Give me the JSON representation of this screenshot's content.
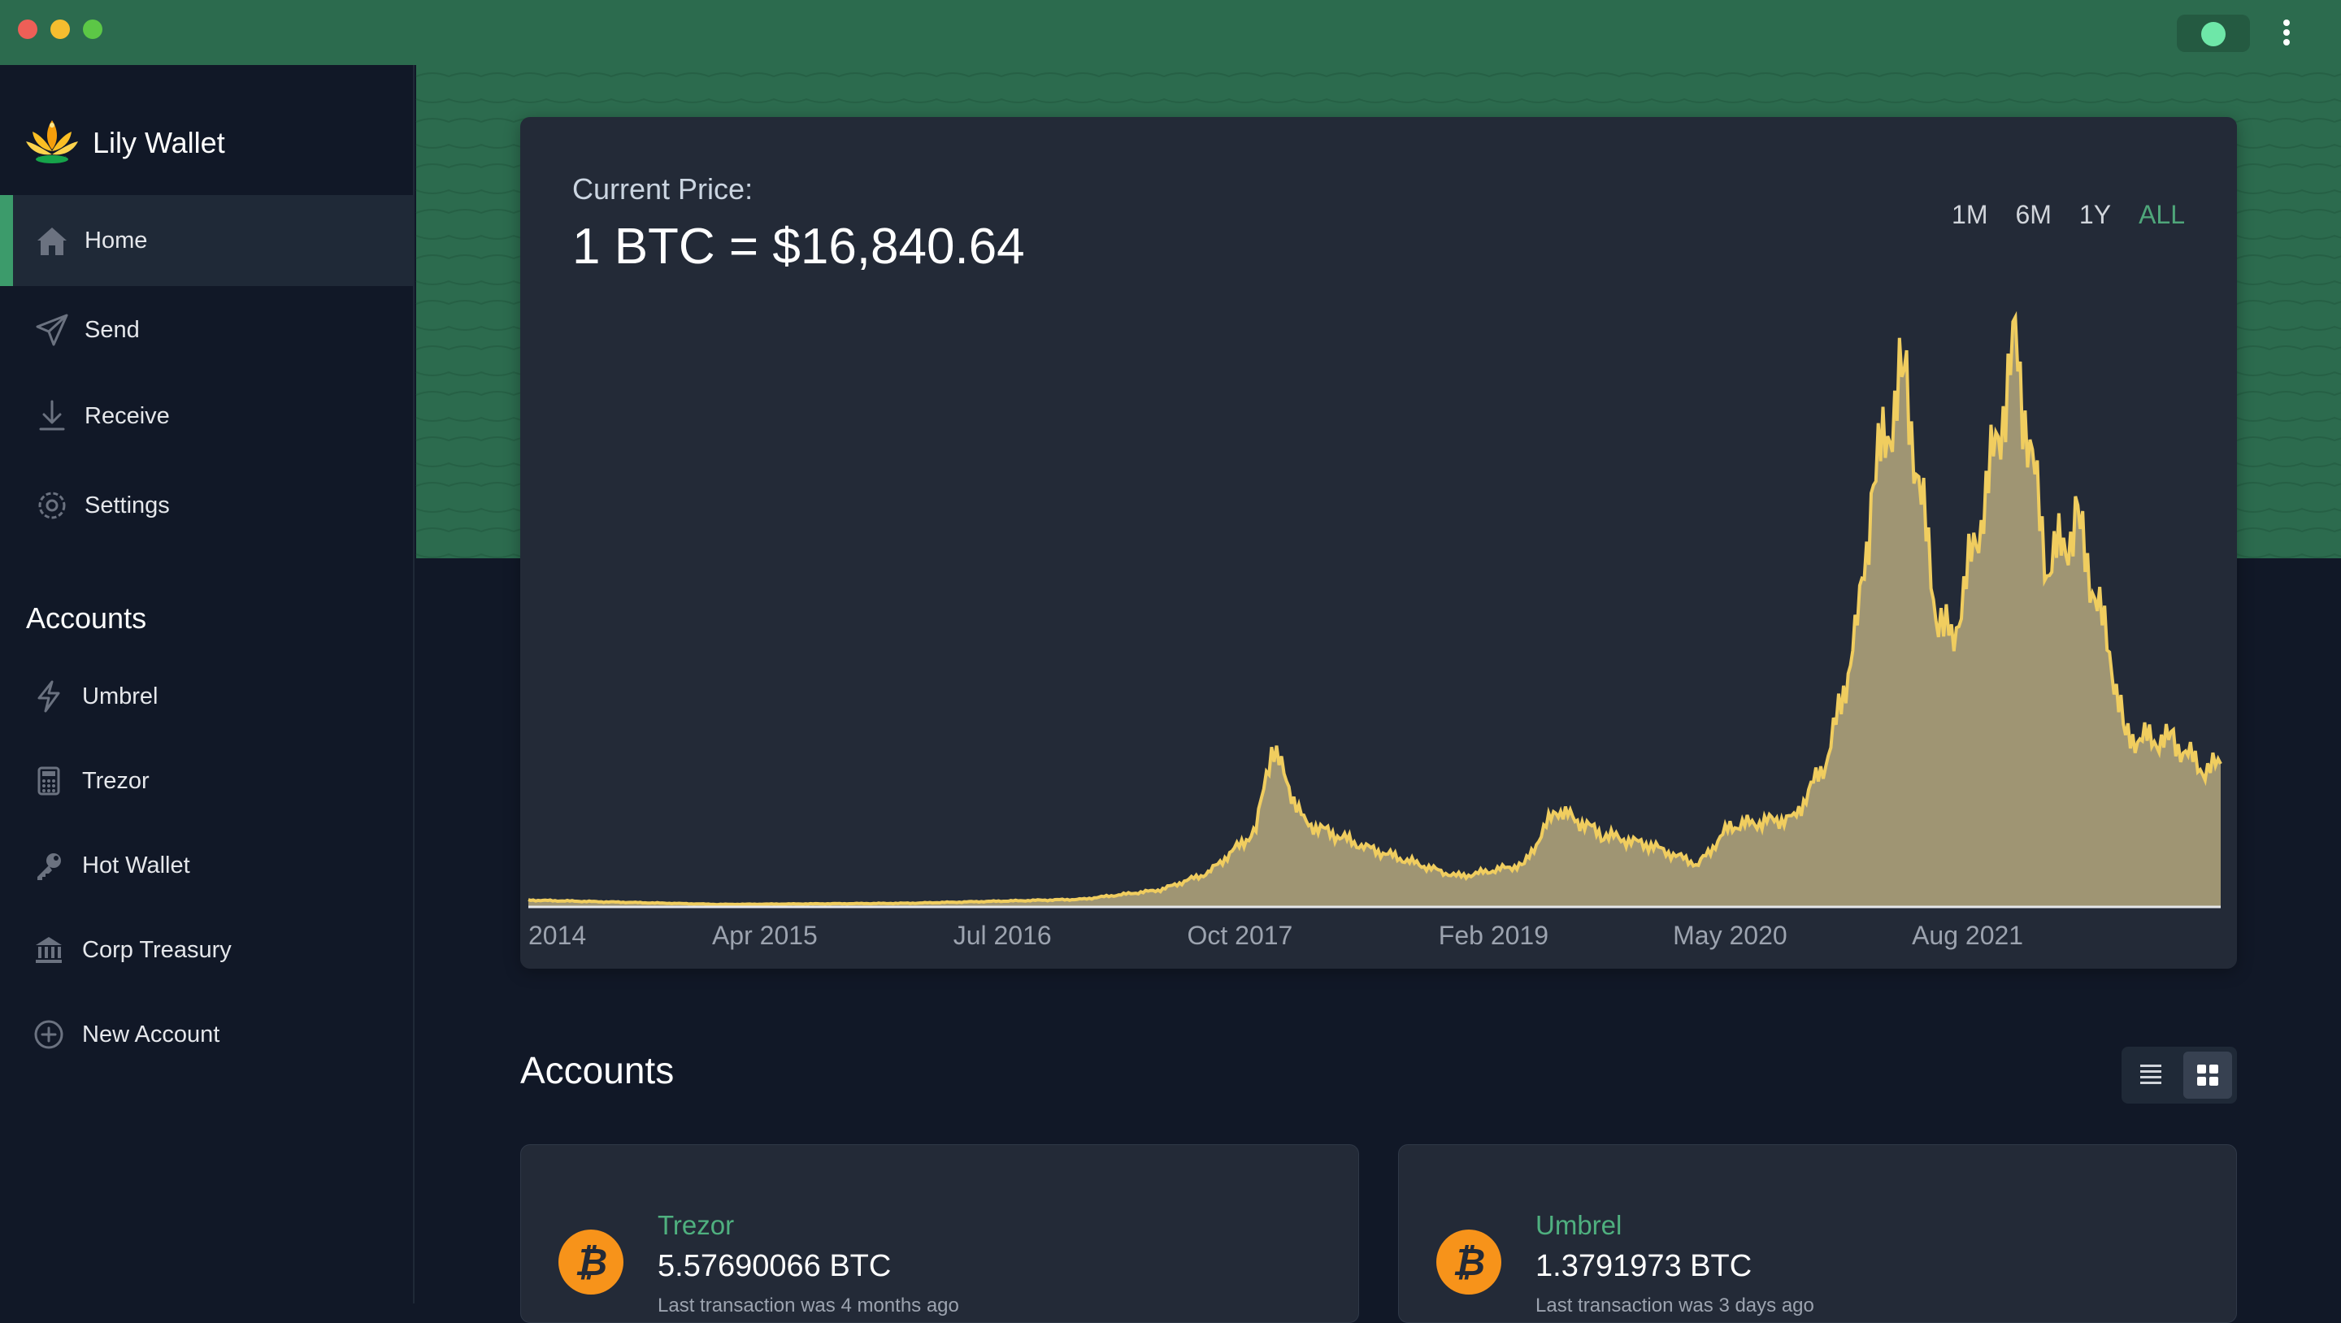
{
  "app": {
    "name": "Lily Wallet"
  },
  "titlebar": {
    "menu_icon": "kebab-menu-icon"
  },
  "sidebar": {
    "nav": [
      {
        "label": "Home",
        "icon": "home-icon",
        "active": true
      },
      {
        "label": "Send",
        "icon": "send-icon"
      },
      {
        "label": "Receive",
        "icon": "receive-icon"
      },
      {
        "label": "Settings",
        "icon": "gear-icon"
      }
    ],
    "accounts_heading": "Accounts",
    "accounts": [
      {
        "label": "Umbrel",
        "icon": "lightning-icon"
      },
      {
        "label": "Trezor",
        "icon": "calculator-icon"
      },
      {
        "label": "Hot Wallet",
        "icon": "key-icon"
      },
      {
        "label": "Corp Treasury",
        "icon": "bank-icon"
      },
      {
        "label": "New Account",
        "icon": "plus-circle-icon"
      }
    ]
  },
  "price": {
    "label": "Current Price:",
    "value": "1 BTC = $16,840.64",
    "ranges": [
      "1M",
      "6M",
      "1Y",
      "ALL"
    ],
    "active_range": "ALL"
  },
  "chart_data": {
    "type": "area",
    "x_ticks": [
      "2014",
      "Apr 2015",
      "Jul 2016",
      "Oct 2017",
      "Feb 2019",
      "May 2020",
      "Aug 2021"
    ],
    "x": [
      "2014-01",
      "2015-01",
      "2016-01",
      "2016-12",
      "2017-05",
      "2017-08",
      "2017-11",
      "2017-12",
      "2018-02",
      "2018-06",
      "2018-11",
      "2018-12",
      "2019-04",
      "2019-06",
      "2019-09",
      "2019-12",
      "2020-03",
      "2020-05",
      "2020-09",
      "2020-11",
      "2020-12",
      "2021-01",
      "2021-02",
      "2021-04",
      "2021-06",
      "2021-07",
      "2021-09",
      "2021-11",
      "2022-01",
      "2022-03",
      "2022-05",
      "2022-06",
      "2022-09",
      "2022-11",
      "2022-12"
    ],
    "values": [
      800,
      300,
      430,
      900,
      2000,
      4000,
      9000,
      19000,
      10000,
      7000,
      4000,
      3600,
      5000,
      11500,
      8500,
      7200,
      5000,
      9500,
      10500,
      17000,
      24000,
      33000,
      50000,
      63000,
      35000,
      31000,
      47000,
      66000,
      40000,
      45000,
      30000,
      20000,
      19500,
      16000,
      16840
    ],
    "series": [
      {
        "values_ref": "values",
        "color": "#f0cd5f",
        "fill": "#9f9573"
      }
    ],
    "ylim": [
      0,
      70000
    ],
    "grid": false,
    "legend": "none"
  },
  "main": {
    "accounts_title": "Accounts",
    "view_toggle": {
      "list_icon": "list-view-icon",
      "grid_icon": "grid-view-icon",
      "active": "grid"
    },
    "cards": [
      {
        "name": "Trezor",
        "balance": "5.57690066 BTC",
        "last_tx": "Last transaction was 4 months ago",
        "icon": "bitcoin-icon"
      },
      {
        "name": "Umbrel",
        "balance": "1.3791973 BTC",
        "last_tx": "Last transaction was 3 days ago",
        "icon": "bitcoin-icon"
      }
    ]
  },
  "colors": {
    "accent": "#2c6b4e",
    "accent_text": "#4fb07f",
    "chart_line": "#f0cd5f",
    "chart_fill": "#9f9573",
    "bitcoin": "#f7931a"
  }
}
